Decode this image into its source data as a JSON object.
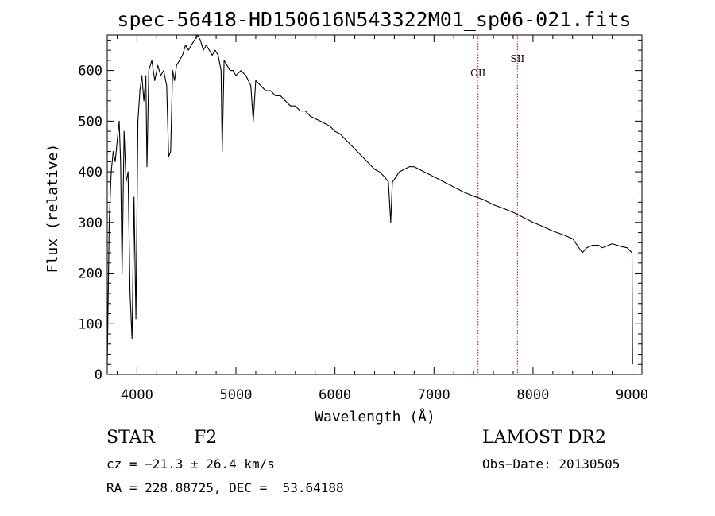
{
  "chart_data": {
    "type": "line",
    "title": "spec-56418-HD150616N543322M01_sp06-021.fits",
    "xlabel": "Wavelength (Å)",
    "ylabel": "Flux (relative)",
    "xlim": [
      3700,
      9100
    ],
    "ylim": [
      0,
      670
    ],
    "xticks": [
      4000,
      5000,
      6000,
      7000,
      8000,
      9000
    ],
    "yticks": [
      0,
      100,
      200,
      300,
      400,
      500,
      600
    ],
    "grid": false,
    "line_color": "#000000",
    "series": [
      {
        "x": [
          3700,
          3720,
          3740,
          3760,
          3780,
          3800,
          3820,
          3835,
          3850,
          3870,
          3890,
          3910,
          3930,
          3950,
          3970,
          3990,
          4010,
          4030,
          4050,
          4070,
          4090,
          4101,
          4120,
          4150,
          4180,
          4210,
          4240,
          4270,
          4300,
          4320,
          4340,
          4360,
          4380,
          4400,
          4430,
          4460,
          4490,
          4520,
          4550,
          4580,
          4610,
          4640,
          4670,
          4700,
          4730,
          4760,
          4790,
          4820,
          4850,
          4861,
          4880,
          4910,
          4940,
          4970,
          5000,
          5050,
          5100,
          5150,
          5175,
          5200,
          5250,
          5300,
          5350,
          5400,
          5450,
          5500,
          5550,
          5600,
          5650,
          5700,
          5750,
          5800,
          5850,
          5900,
          5950,
          6000,
          6050,
          6100,
          6150,
          6200,
          6250,
          6300,
          6350,
          6400,
          6450,
          6500,
          6540,
          6563,
          6580,
          6600,
          6650,
          6700,
          6750,
          6800,
          6850,
          6900,
          6950,
          7000,
          7100,
          7200,
          7300,
          7400,
          7500,
          7600,
          7700,
          7800,
          7900,
          8000,
          8100,
          8200,
          8300,
          8400,
          8498,
          8542,
          8600,
          8662,
          8700,
          8800,
          8850,
          8900,
          8950,
          9000,
          9005
        ],
        "y": [
          20,
          300,
          400,
          440,
          420,
          460,
          500,
          420,
          200,
          480,
          380,
          400,
          160,
          70,
          350,
          110,
          500,
          560,
          590,
          540,
          590,
          410,
          600,
          620,
          580,
          610,
          590,
          600,
          570,
          430,
          440,
          600,
          580,
          610,
          620,
          630,
          650,
          640,
          650,
          660,
          670,
          660,
          640,
          650,
          640,
          630,
          640,
          630,
          600,
          440,
          620,
          610,
          600,
          600,
          590,
          600,
          590,
          570,
          500,
          580,
          570,
          560,
          560,
          550,
          550,
          540,
          530,
          530,
          520,
          520,
          510,
          505,
          500,
          495,
          490,
          480,
          475,
          465,
          455,
          445,
          435,
          425,
          415,
          405,
          400,
          390,
          380,
          300,
          380,
          385,
          400,
          405,
          410,
          410,
          405,
          400,
          395,
          390,
          380,
          370,
          360,
          352,
          345,
          335,
          328,
          320,
          310,
          300,
          292,
          283,
          276,
          268,
          240,
          250,
          255,
          255,
          250,
          258,
          255,
          252,
          250,
          240,
          20
        ]
      },
      {
        "name": "OII",
        "x": [
          7445,
          7445
        ],
        "y": [
          0,
          670
        ]
      },
      {
        "name": "SII",
        "x": [
          7843,
          7843
        ],
        "y": [
          0,
          670
        ]
      }
    ],
    "annotations": [
      {
        "text": "OII",
        "x": 7445,
        "color": "#cc0000"
      },
      {
        "text": "SII",
        "x": 7843,
        "color": "#cc0000"
      }
    ]
  },
  "info": {
    "object_class": "STAR",
    "subclass": "F2",
    "cz_text": "cz = −21.3 ± 26.4 km/s",
    "coords_text": "RA = 228.88725, DEC =  53.64188",
    "survey": "LAMOST DR2",
    "obs_date": "Obs−Date: 20130505"
  }
}
